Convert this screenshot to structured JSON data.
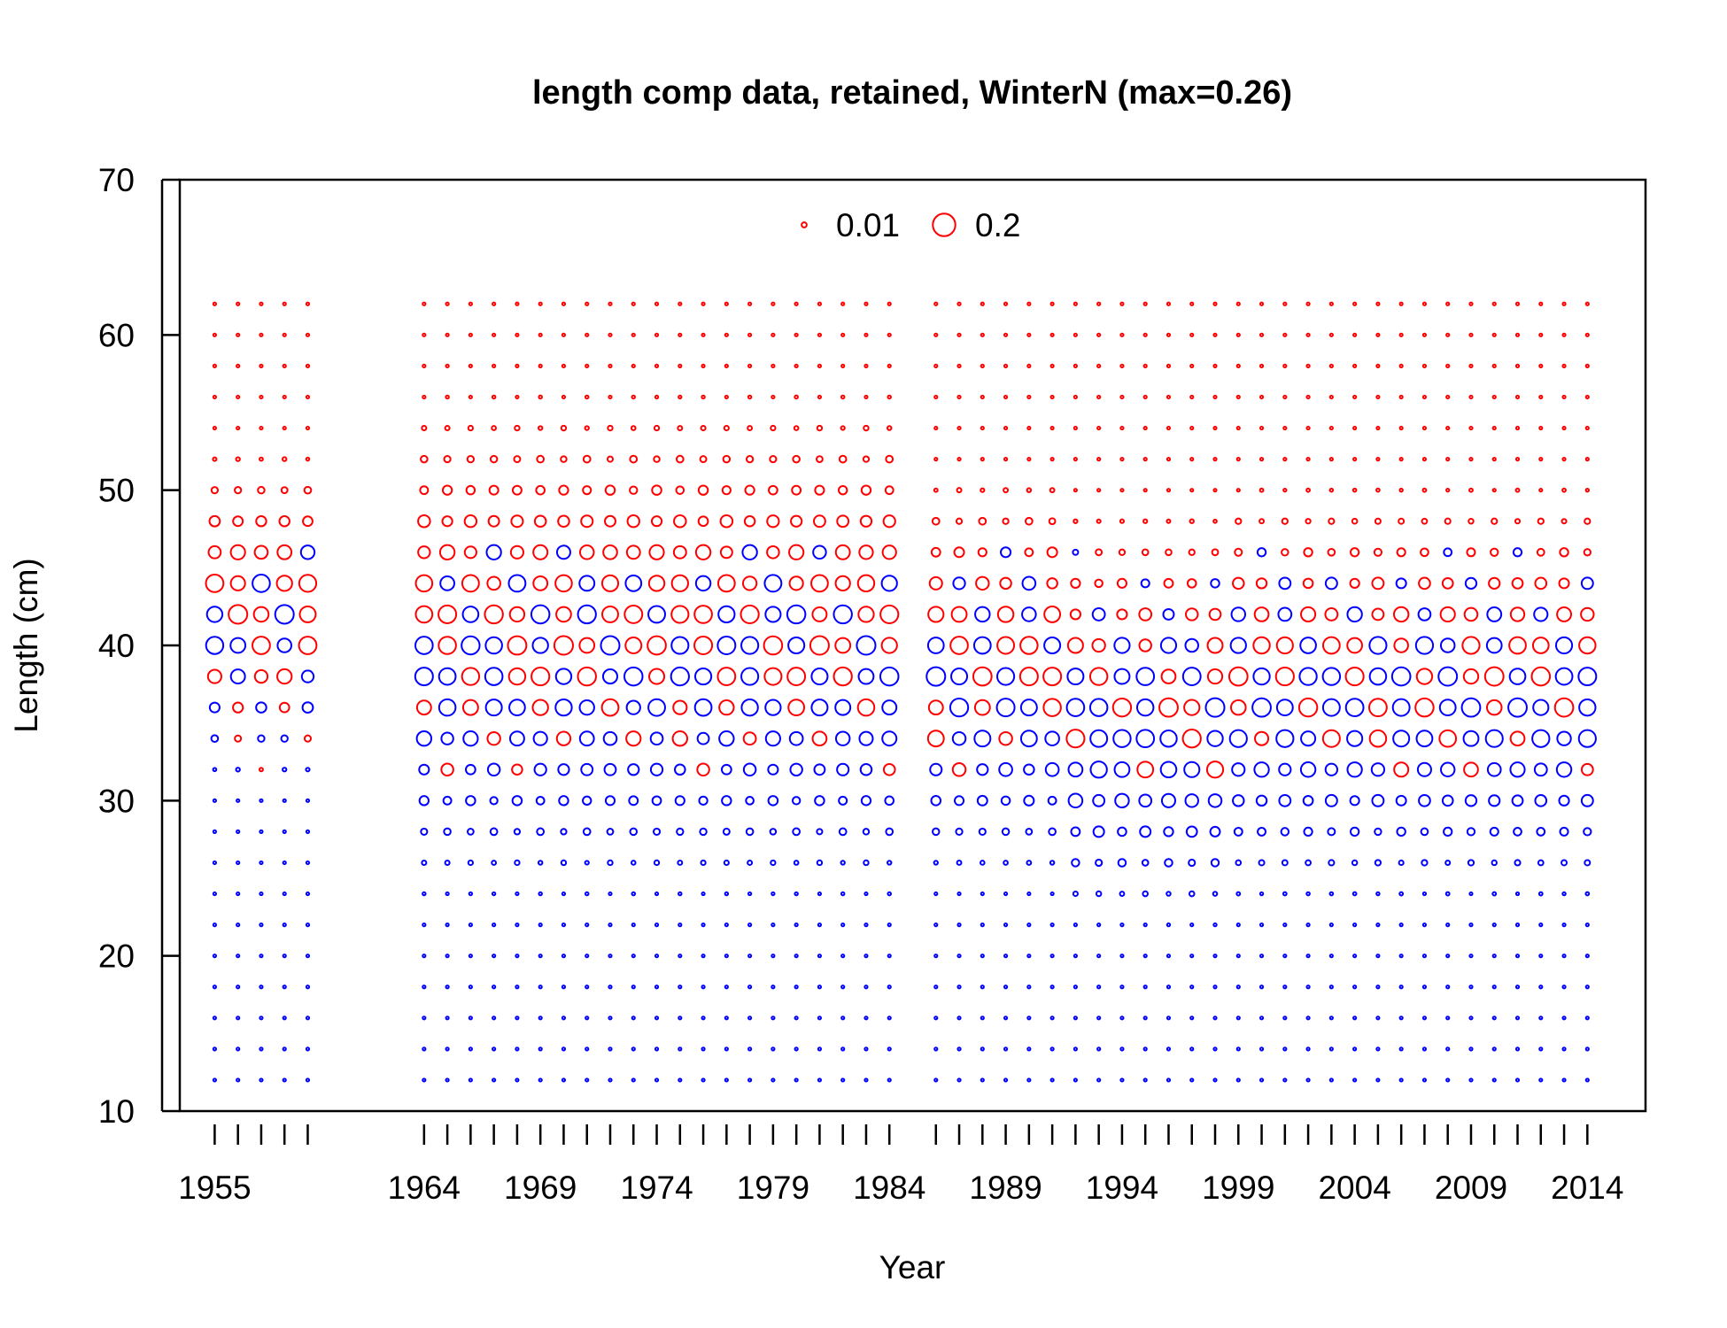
{
  "chart_data": {
    "type": "bubble",
    "title": "length comp data, retained, WinterN (max=0.26)",
    "xlabel": "Year",
    "ylabel": "Length (cm)",
    "xlim": [
      1953.5,
      2016.5
    ],
    "ylim": [
      10,
      70
    ],
    "x_tick_labels": [
      "1955",
      "1964",
      "1969",
      "1974",
      "1979",
      "1984",
      "1989",
      "1994",
      "1999",
      "2004",
      "2009",
      "2014"
    ],
    "y_tick_labels": [
      "10",
      "20",
      "30",
      "40",
      "50",
      "60",
      "70"
    ],
    "years": [
      1955,
      1956,
      1957,
      1958,
      1959,
      1964,
      1965,
      1966,
      1967,
      1968,
      1969,
      1970,
      1971,
      1972,
      1973,
      1974,
      1975,
      1976,
      1977,
      1978,
      1979,
      1980,
      1981,
      1982,
      1983,
      1984,
      1986,
      1987,
      1988,
      1989,
      1990,
      1991,
      1992,
      1993,
      1994,
      1995,
      1996,
      1997,
      1998,
      1999,
      2000,
      2001,
      2002,
      2003,
      2004,
      2005,
      2006,
      2007,
      2008,
      2009,
      2010,
      2011,
      2012,
      2013,
      2014
    ],
    "length_bins": [
      12,
      14,
      16,
      18,
      20,
      22,
      24,
      26,
      28,
      30,
      32,
      34,
      36,
      38,
      40,
      42,
      44,
      46,
      48,
      50,
      52,
      54,
      56,
      58,
      60,
      62
    ],
    "legend": {
      "position": "top",
      "entries": [
        {
          "label": "0.01",
          "value": 0.01
        },
        {
          "label": "0.2",
          "value": 0.2
        }
      ]
    },
    "max_proportion": 0.26,
    "colors": {
      "positive_residual": "#ff0000",
      "negative_residual": "#0000ff",
      "axis": "#000000"
    },
    "grid": false
  }
}
